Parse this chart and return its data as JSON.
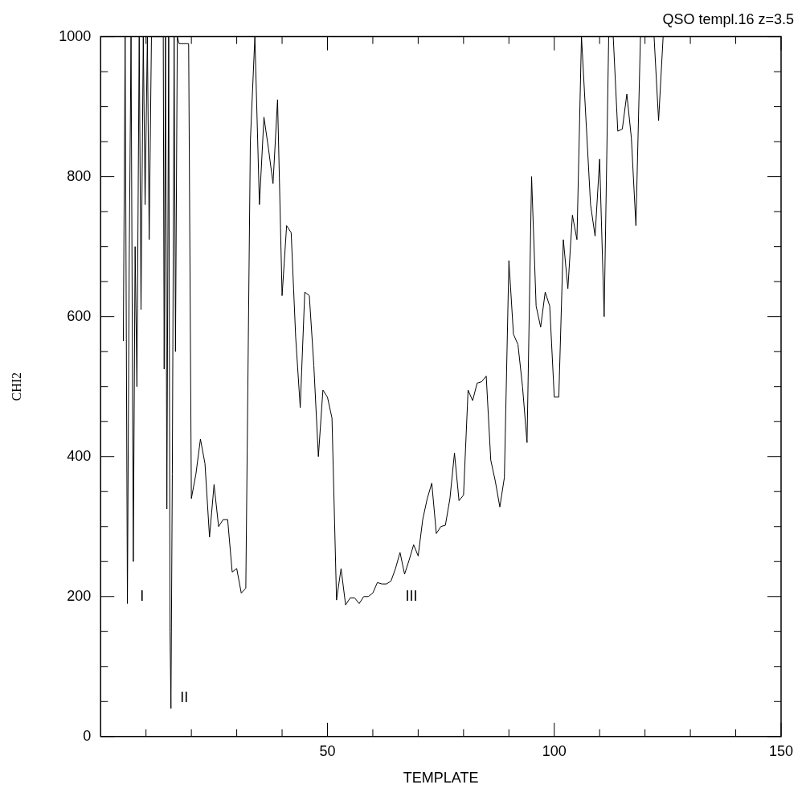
{
  "chart_data": {
    "type": "line",
    "title": "QSO templ.16 z=3.5",
    "xlabel": "TEMPLATE",
    "ylabel": "CHI2",
    "xlim": [
      0,
      150
    ],
    "xticks": [
      {
        "value": 10,
        "label": null
      },
      {
        "value": 20,
        "label": null
      },
      {
        "value": 30,
        "label": null
      },
      {
        "value": 40,
        "label": null
      },
      50,
      {
        "value": 60,
        "label": null
      },
      {
        "value": 70,
        "label": null
      },
      {
        "value": 80,
        "label": null
      },
      {
        "value": 90,
        "label": null
      },
      100,
      {
        "value": 110,
        "label": null
      },
      {
        "value": 120,
        "label": null
      },
      {
        "value": 130,
        "label": null
      },
      {
        "value": 140,
        "label": null
      },
      150
    ],
    "ylim": [
      0,
      1000
    ],
    "yticks": [
      0,
      {
        "value": 50,
        "label": null
      },
      {
        "value": 100,
        "label": null
      },
      {
        "value": 150,
        "label": null
      },
      200,
      {
        "value": 250,
        "label": null
      },
      {
        "value": 300,
        "label": null
      },
      {
        "value": 350,
        "label": null
      },
      400,
      {
        "value": 450,
        "label": null
      },
      {
        "value": 500,
        "label": null
      },
      {
        "value": 550,
        "label": null
      },
      600,
      {
        "value": 650,
        "label": null
      },
      {
        "value": 700,
        "label": null
      },
      {
        "value": 750,
        "label": null
      },
      800,
      {
        "value": 850,
        "label": null
      },
      {
        "value": 900,
        "label": null
      },
      {
        "value": 950,
        "label": null
      },
      1000
    ],
    "grid": false,
    "legend": false,
    "marker": "none",
    "line_style": "solid",
    "annotations": [
      "I",
      "II",
      "III"
    ],
    "series": [
      {
        "color": "#000000",
        "x": [
          5.0,
          5.4,
          5.9,
          6.3,
          6.7,
          7.2,
          7.6,
          8.0,
          8.5,
          8.9,
          9.4,
          9.8,
          10.3,
          10.7,
          11.2,
          13.8,
          14.0,
          14.3,
          14.6,
          15.0,
          15.3,
          15.5,
          15.8,
          16.2,
          16.5,
          16.9,
          17.3,
          19.4,
          20,
          21,
          22,
          23,
          24,
          25,
          26,
          27,
          28,
          29,
          30,
          31,
          32,
          33,
          34,
          35,
          36,
          37,
          38,
          39,
          40,
          41,
          42,
          43,
          44,
          45,
          46,
          47,
          48,
          49,
          50,
          51,
          52,
          53,
          54,
          55,
          56,
          57,
          58,
          59,
          60,
          61,
          62,
          63,
          64,
          65,
          66,
          67,
          68,
          69,
          70,
          71,
          72,
          73,
          74,
          75,
          76,
          77,
          78,
          79,
          80,
          81,
          82,
          83,
          84,
          85,
          86,
          87,
          88,
          89,
          90,
          91,
          92,
          93,
          94,
          95,
          96,
          97,
          98,
          99,
          100,
          101,
          102,
          103,
          104,
          105,
          106,
          107,
          108,
          109,
          110,
          111,
          112,
          113,
          114,
          115,
          116,
          117,
          118,
          119,
          120,
          121,
          122,
          123,
          124
        ],
        "values": [
          565,
          1000,
          190,
          680,
          1000,
          250,
          700,
          500,
          1000,
          610,
          1000,
          760,
          1000,
          710,
          1000,
          1000,
          525,
          1000,
          325,
          1000,
          150,
          40,
          375,
          1000,
          550,
          1000,
          990,
          990,
          340,
          375,
          425,
          390,
          285,
          360,
          300,
          310,
          310,
          235,
          240,
          205,
          212,
          850,
          1000,
          760,
          885,
          840,
          790,
          910,
          630,
          730,
          720,
          570,
          470,
          635,
          630,
          530,
          400,
          495,
          485,
          455,
          195,
          240,
          188,
          198,
          198,
          190,
          200,
          200,
          205,
          220,
          218,
          218,
          222,
          240,
          263,
          232,
          252,
          274,
          258,
          310,
          340,
          362,
          290,
          300,
          302,
          340,
          405,
          337,
          345,
          495,
          480,
          505,
          507,
          515,
          395,
          365,
          328,
          370,
          680,
          575,
          560,
          500,
          420,
          800,
          615,
          585,
          635,
          615,
          485,
          485,
          710,
          640,
          745,
          710,
          1000,
          880,
          760,
          715,
          825,
          600,
          1000,
          1000,
          865,
          868,
          918,
          855,
          730,
          1000,
          1000,
          1000,
          1000,
          880,
          1000
        ]
      }
    ]
  }
}
